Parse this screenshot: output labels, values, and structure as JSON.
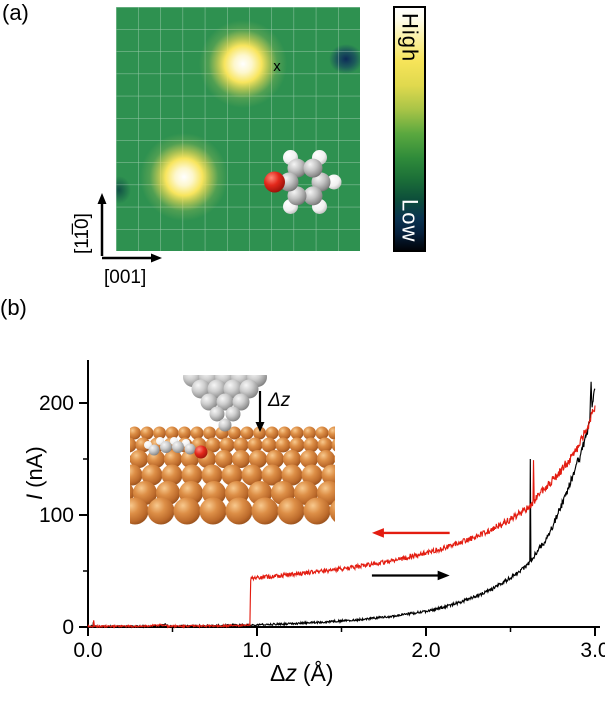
{
  "figure": {
    "panel_a_label": "(a)",
    "panel_b_label": "(b)"
  },
  "panel_a": {
    "marker": "x",
    "colorbar": {
      "high": "High",
      "low": "Low"
    },
    "axes": {
      "vertical": "[11̅0]",
      "horizontal": "[001]"
    }
  },
  "panel_b": {
    "ylabel_var": "I",
    "ylabel_unit": "(nA)",
    "xlabel_prefix": "Δ",
    "xlabel_var": "z",
    "xlabel_unit": "(Å)",
    "inset_label": "Δz"
  },
  "colors": {
    "stm_background": "#2e9150",
    "bright_spot": "#f8e55e",
    "depression": "#0b2558",
    "curve_black": "#000000",
    "curve_red": "#e31c10",
    "copper": "#c1702f"
  },
  "chart_data": {
    "type": "line",
    "title": "",
    "xlabel": "Δz (Å)",
    "ylabel": "I (nA)",
    "xlim": [
      0.0,
      3.0
    ],
    "ylim": [
      0,
      230
    ],
    "xticks": [
      0,
      1,
      2,
      3
    ],
    "xtick_labels": [
      "0.0",
      "1.0",
      "2.0",
      "3.0"
    ],
    "yticks": [
      0,
      100,
      200
    ],
    "ytick_labels": [
      "0",
      "100",
      "200"
    ],
    "x_minor_ticks": [
      0.5,
      1.5,
      2.5
    ],
    "y_minor_ticks": [
      50,
      150
    ],
    "grid": false,
    "legend": "none",
    "series": [
      {
        "id": "approach-black",
        "color": "#000000",
        "direction": "right",
        "points": [
          [
            0.0,
            0.4
          ],
          [
            0.028,
            0.5
          ],
          [
            0.032,
            4.5
          ],
          [
            0.036,
            0.5
          ],
          [
            0.12,
            0.4
          ],
          [
            0.25,
            0.5
          ],
          [
            0.43,
            0.7
          ],
          [
            0.455,
            2.4
          ],
          [
            0.48,
            0.7
          ],
          [
            0.62,
            0.9
          ],
          [
            0.8,
            1.3
          ],
          [
            1.0,
            2.0
          ],
          [
            1.2,
            3.0
          ],
          [
            1.4,
            4.5
          ],
          [
            1.6,
            6.5
          ],
          [
            1.8,
            9.5
          ],
          [
            2.0,
            14
          ],
          [
            2.1,
            17.5
          ],
          [
            2.2,
            22
          ],
          [
            2.3,
            27.5
          ],
          [
            2.4,
            34.5
          ],
          [
            2.5,
            44
          ],
          [
            2.6,
            55
          ],
          [
            2.614,
            58
          ],
          [
            2.617,
            150
          ],
          [
            2.621,
            59
          ],
          [
            2.66,
            68
          ],
          [
            2.7,
            76
          ],
          [
            2.75,
            90
          ],
          [
            2.8,
            108
          ],
          [
            2.85,
            127
          ],
          [
            2.9,
            148
          ],
          [
            2.94,
            166
          ],
          [
            2.97,
            186
          ],
          [
            2.977,
            224
          ],
          [
            2.983,
            192
          ],
          [
            3.0,
            213
          ]
        ]
      },
      {
        "id": "retract-red",
        "color": "#e31c10",
        "direction": "left",
        "points": [
          [
            0.0,
            0.5
          ],
          [
            0.03,
            0.6
          ],
          [
            0.034,
            6
          ],
          [
            0.038,
            0.6
          ],
          [
            0.16,
            0.5
          ],
          [
            0.3,
            0.6
          ],
          [
            0.44,
            1.8
          ],
          [
            0.465,
            0.7
          ],
          [
            0.6,
            0.8
          ],
          [
            0.75,
            1.0
          ],
          [
            0.9,
            1.4
          ],
          [
            0.95,
            2.0
          ],
          [
            0.958,
            2.4
          ],
          [
            0.963,
            43
          ],
          [
            1.0,
            44
          ],
          [
            1.15,
            46
          ],
          [
            1.3,
            48.5
          ],
          [
            1.45,
            51
          ],
          [
            1.6,
            54
          ],
          [
            1.75,
            58
          ],
          [
            1.9,
            62.5
          ],
          [
            2.05,
            68
          ],
          [
            2.2,
            75
          ],
          [
            2.35,
            84
          ],
          [
            2.5,
            96
          ],
          [
            2.6,
            106
          ],
          [
            2.633,
            111
          ],
          [
            2.636,
            149
          ],
          [
            2.64,
            113
          ],
          [
            2.7,
            123
          ],
          [
            2.8,
            140
          ],
          [
            2.88,
            155
          ],
          [
            2.95,
            176
          ],
          [
            3.0,
            198
          ]
        ]
      }
    ],
    "arrows": [
      {
        "color": "#000000",
        "from_x": 1.68,
        "to_x": 2.14,
        "y": 46
      },
      {
        "color": "#e31c10",
        "from_x": 2.14,
        "to_x": 1.68,
        "y": 84
      }
    ]
  }
}
